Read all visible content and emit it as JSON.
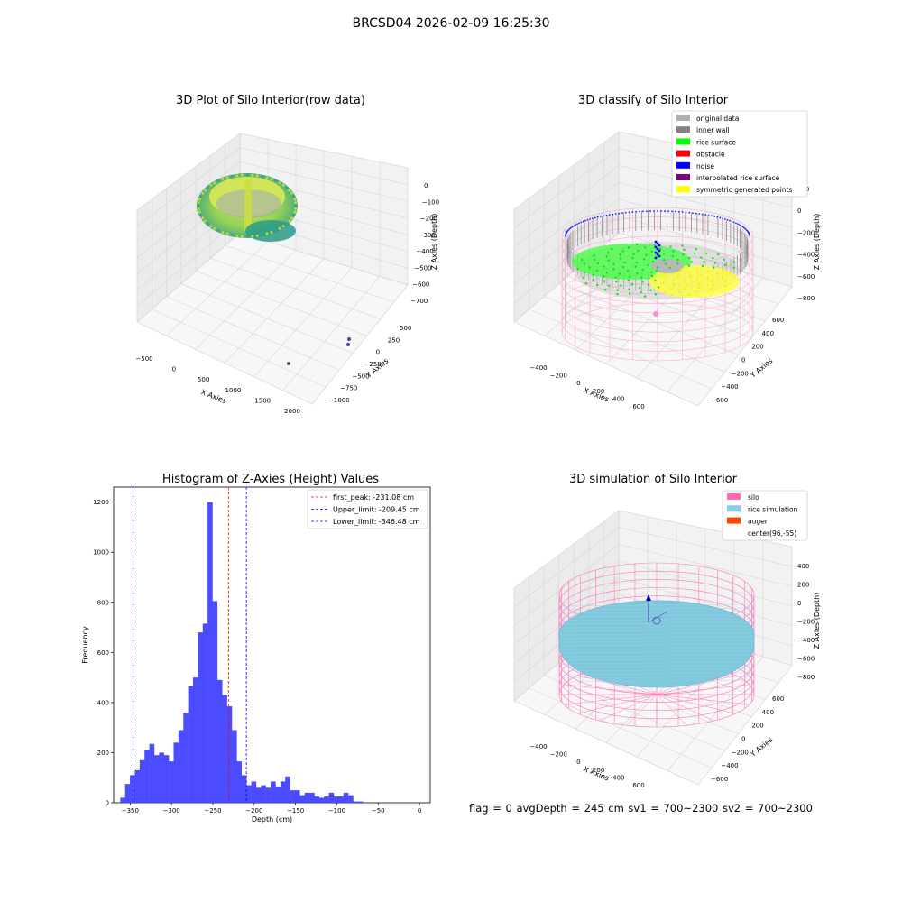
{
  "suptitle": "BRCSD04 2026-02-09 16:25:30",
  "footer": "flag = 0     avgDepth = 245 cm  sv1 = 700~2300  sv2 = 700~2300",
  "chart_data": [
    {
      "type": "scatter",
      "title": "3D Plot of Silo Interior(row data)",
      "xlabel": "X Axies",
      "ylabel": "Y Axies",
      "zlabel": "Z Axies (Depth)",
      "x_ticks": [
        "−500",
        "0",
        "500",
        "1000",
        "1500",
        "2000"
      ],
      "y_ticks": [
        "500",
        "250",
        "0",
        "−250",
        "−500",
        "−750",
        "−1000"
      ],
      "z_ticks": [
        "0",
        "−100",
        "−200",
        "−300",
        "−400",
        "−500",
        "−600",
        "−700"
      ],
      "outlier_points": [
        {
          "x": 1550,
          "y": 300,
          "z": -700
        },
        {
          "x": 1600,
          "y": 200,
          "z": -710
        },
        {
          "x": 1050,
          "y": -250,
          "z": -720
        }
      ]
    },
    {
      "type": "scatter",
      "title": "3D classify of Silo Interior",
      "xlabel": "X Axies",
      "ylabel": "Y Axies",
      "zlabel": "Z Axies (Depth)",
      "x_ticks": [
        "−400",
        "−200",
        "0",
        "200",
        "400",
        "600"
      ],
      "y_ticks": [
        "600",
        "400",
        "200",
        "0",
        "−200",
        "−400",
        "−600"
      ],
      "z_ticks": [
        "200",
        "0",
        "−200",
        "−400",
        "−600",
        "−800"
      ],
      "legend": [
        {
          "label": "original data",
          "color": "#b0b0b0"
        },
        {
          "label": "inner wall",
          "color": "#808080"
        },
        {
          "label": "rice surface",
          "color": "#00ff00"
        },
        {
          "label": "obstacle",
          "color": "#ff0000"
        },
        {
          "label": "noise",
          "color": "#0000ff"
        },
        {
          "label": "interpolated rice surface",
          "color": "#800080"
        },
        {
          "label": "symmetric generated points",
          "color": "#ffff00"
        }
      ]
    },
    {
      "type": "bar",
      "title": "Histogram of Z-Axies (Height) Values",
      "xlabel": "Depth (cm)",
      "ylabel": "Frequency",
      "xlim": [
        -370,
        13
      ],
      "ylim": [
        0,
        1260
      ],
      "x_ticks": [
        -350,
        -300,
        -250,
        -200,
        -150,
        -100,
        -50,
        0
      ],
      "x_tick_labels": [
        "−350",
        "−300",
        "−250",
        "−200",
        "−150",
        "−100",
        "−50",
        "0"
      ],
      "y_ticks": [
        0,
        200,
        400,
        600,
        800,
        1000,
        1200
      ],
      "bin_start": -362,
      "bin_width": 5.87,
      "values": [
        20,
        75,
        110,
        130,
        170,
        210,
        235,
        190,
        200,
        190,
        165,
        240,
        290,
        360,
        465,
        500,
        680,
        715,
        1200,
        805,
        490,
        430,
        385,
        290,
        165,
        110,
        70,
        85,
        60,
        70,
        60,
        85,
        65,
        85,
        105,
        50,
        50,
        30,
        40,
        40,
        25,
        20,
        25,
        40,
        25,
        25,
        40,
        30,
        5,
        5
      ],
      "bar_color": "#4b4bff",
      "lines": [
        {
          "label": "first_peak: -231.08 cm",
          "x": -231.08,
          "color": "#ff0000"
        },
        {
          "label": "Upper_limit: -209.45 cm",
          "x": -209.45,
          "color": "#0000ff"
        },
        {
          "label": "Lower_limit: -346.48 cm",
          "x": -346.48,
          "color": "#0000ff"
        }
      ],
      "legend_position": "top-right"
    },
    {
      "type": "scatter",
      "title": "3D simulation of Silo Interior",
      "xlabel": "X Axies",
      "ylabel": "Y Axies",
      "zlabel": "Z Axies (Depth)",
      "x_ticks": [
        "−400",
        "−200",
        "0",
        "200",
        "400",
        "600"
      ],
      "y_ticks": [
        "600",
        "400",
        "200",
        "0",
        "−200",
        "−400",
        "−600"
      ],
      "z_ticks": [
        "400",
        "200",
        "0",
        "−200",
        "−400",
        "−600",
        "−800"
      ],
      "legend": [
        {
          "label": "silo",
          "color": "#ff69b4"
        },
        {
          "label": "rice simulation",
          "color": "#87ceeb"
        },
        {
          "label": "auger",
          "color": "#ff4500"
        },
        {
          "label": "center(96,-55)",
          "color": "#ffffff"
        }
      ]
    }
  ]
}
